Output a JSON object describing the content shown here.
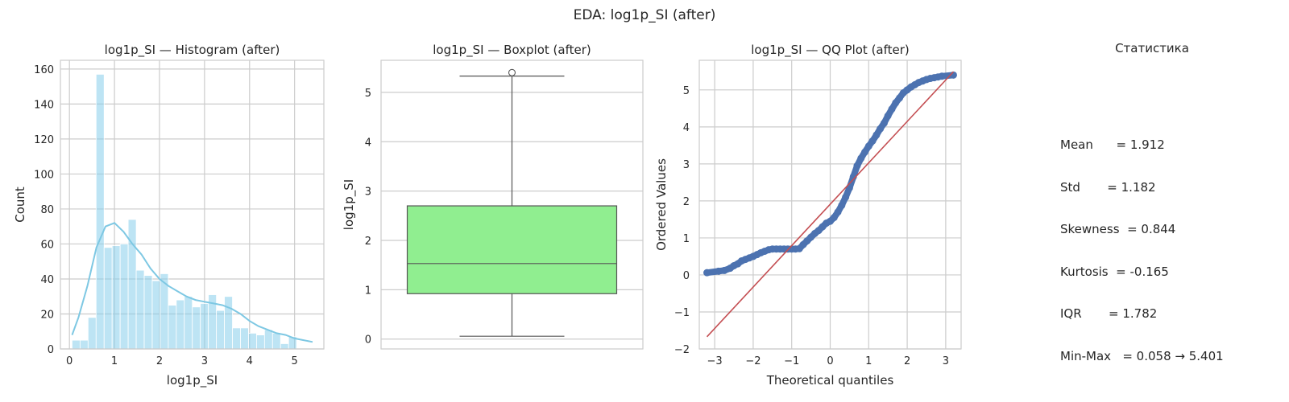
{
  "suptitle": "EDA: log1p_SI (after)",
  "chart_data": [
    {
      "type": "histogram",
      "title": "log1p_SI — Histogram (after)",
      "xlabel": "log1p_SI",
      "ylabel": "Count",
      "xlim": [
        -0.2,
        5.65
      ],
      "ylim": [
        0,
        165
      ],
      "xticks": [
        0,
        1,
        2,
        3,
        4,
        5
      ],
      "yticks": [
        0,
        20,
        40,
        60,
        80,
        100,
        120,
        140,
        160
      ],
      "bin_start": 0.058,
      "bin_width": 0.1781,
      "counts": [
        5,
        5,
        18,
        157,
        58,
        59,
        60,
        74,
        45,
        42,
        39,
        43,
        25,
        28,
        30,
        24,
        26,
        31,
        22,
        30,
        12,
        12,
        9,
        8,
        11,
        9,
        3,
        7
      ],
      "kde_x": [
        0.06,
        0.2,
        0.4,
        0.6,
        0.8,
        1.0,
        1.2,
        1.4,
        1.6,
        1.8,
        2.0,
        2.2,
        2.4,
        2.6,
        2.8,
        3.0,
        3.2,
        3.4,
        3.6,
        3.8,
        4.0,
        4.2,
        4.4,
        4.6,
        4.8,
        5.0,
        5.2,
        5.4
      ],
      "kde_y": [
        8,
        18,
        36,
        58,
        70,
        72,
        67,
        60,
        54,
        46,
        40,
        36,
        33,
        30,
        28,
        27,
        26,
        25,
        23,
        20,
        16,
        13,
        11,
        9,
        8,
        6,
        5,
        4
      ],
      "bar_color": "#87CEEB",
      "kde_color": "#7EC8E3"
    },
    {
      "type": "boxplot",
      "title": "log1p_SI — Boxplot (after)",
      "xlabel": "",
      "ylabel": "log1p_SI",
      "ylim": [
        -0.2,
        5.65
      ],
      "yticks": [
        0,
        1,
        2,
        3,
        4,
        5
      ],
      "whisker_low": 0.058,
      "q1": 0.92,
      "median": 1.53,
      "q3": 2.7,
      "whisker_high": 5.33,
      "outliers": [
        5.401
      ],
      "box_color": "#90EE90"
    },
    {
      "type": "scatter",
      "title": "log1p_SI — QQ Plot (after)",
      "xlabel": "Theoretical quantiles",
      "ylabel": "Ordered Values",
      "xlim": [
        -3.4,
        3.4
      ],
      "ylim": [
        -2,
        5.8
      ],
      "xticks": [
        -3,
        -2,
        -1,
        0,
        1,
        2,
        3
      ],
      "yticks": [
        -2,
        -1,
        0,
        1,
        2,
        3,
        4,
        5
      ],
      "qq_x": [
        -3.2,
        -2.9,
        -2.75,
        -2.6,
        -2.5,
        -2.4,
        -2.3,
        -2.2,
        -2.1,
        -2.0,
        -1.9,
        -1.8,
        -1.7,
        -1.6,
        -1.5,
        -1.4,
        -1.3,
        -1.2,
        -1.1,
        -1.0,
        -0.9,
        -0.8,
        -0.7,
        -0.6,
        -0.5,
        -0.4,
        -0.3,
        -0.2,
        -0.1,
        0.0,
        0.1,
        0.2,
        0.3,
        0.4,
        0.5,
        0.6,
        0.7,
        0.8,
        0.9,
        1.0,
        1.1,
        1.2,
        1.3,
        1.4,
        1.5,
        1.6,
        1.7,
        1.8,
        1.9,
        2.0,
        2.1,
        2.2,
        2.3,
        2.4,
        2.5,
        2.6,
        2.7,
        2.8,
        2.9,
        3.2
      ],
      "qq_y": [
        0.06,
        0.1,
        0.12,
        0.18,
        0.25,
        0.3,
        0.38,
        0.42,
        0.46,
        0.5,
        0.55,
        0.6,
        0.64,
        0.68,
        0.7,
        0.7,
        0.7,
        0.7,
        0.7,
        0.7,
        0.7,
        0.71,
        0.82,
        0.92,
        1.02,
        1.12,
        1.2,
        1.3,
        1.4,
        1.45,
        1.55,
        1.7,
        1.88,
        2.1,
        2.35,
        2.65,
        2.95,
        3.15,
        3.32,
        3.48,
        3.62,
        3.78,
        3.95,
        4.1,
        4.3,
        4.48,
        4.65,
        4.78,
        4.92,
        5.0,
        5.08,
        5.14,
        5.2,
        5.24,
        5.28,
        5.31,
        5.33,
        5.35,
        5.37,
        5.401
      ],
      "fit_line": {
        "x": [
          -3.2,
          3.2
        ],
        "y": [
          -1.67,
          5.49
        ]
      },
      "point_color": "#4C72B0",
      "line_color": "#C44E52"
    }
  ],
  "stats": {
    "title": "Статистика",
    "lines": [
      "Mean      = 1.912",
      "Std       = 1.182",
      "Skewness  = 0.844",
      "Kurtosis  = -0.165",
      "IQR       = 1.782",
      "Min-Max   = 0.058 → 5.401"
    ]
  }
}
